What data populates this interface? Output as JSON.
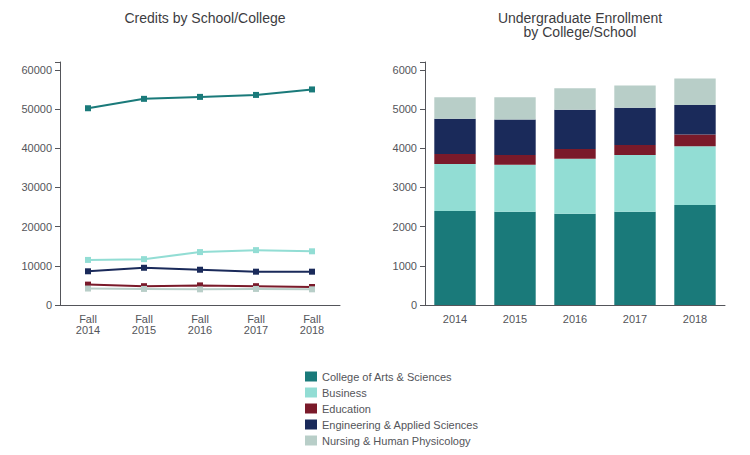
{
  "chart_data": [
    {
      "type": "line",
      "title": "Credits by School/College",
      "categories": [
        "Fall\n2014",
        "Fall\n2015",
        "Fall\n2016",
        "Fall\n2017",
        "Fall\n2018"
      ],
      "series": [
        {
          "name": "College of Arts & Sciences",
          "color": "#1a7a7a",
          "values": [
            50200,
            52600,
            53100,
            53600,
            55000
          ]
        },
        {
          "name": "Business",
          "color": "#92ddd4",
          "values": [
            11500,
            11700,
            13500,
            14000,
            13700
          ]
        },
        {
          "name": "Engineering & Applied Sciences",
          "color": "#1a2a5a",
          "values": [
            8600,
            9500,
            9000,
            8500,
            8500
          ]
        },
        {
          "name": "Education",
          "color": "#7a1a2a",
          "values": [
            5200,
            4800,
            5000,
            4800,
            4600
          ]
        },
        {
          "name": "Nursing & Human Physicology",
          "color": "#b8cec8",
          "values": [
            4200,
            4100,
            4000,
            4100,
            4000
          ]
        }
      ],
      "ylim": [
        0,
        62000
      ],
      "yticks": [
        0,
        10000,
        20000,
        30000,
        40000,
        50000,
        60000
      ],
      "marker": "square",
      "grid": false
    },
    {
      "type": "bar",
      "title": "Undergraduate Enrollment\nby College/School",
      "categories": [
        "2014",
        "2015",
        "2016",
        "2017",
        "2018"
      ],
      "series": [
        {
          "name": "College of Arts & Sciences",
          "color": "#1a7a7a",
          "values": [
            2400,
            2380,
            2330,
            2380,
            2550
          ]
        },
        {
          "name": "Business",
          "color": "#92ddd4",
          "values": [
            1200,
            1200,
            1400,
            1450,
            1500
          ]
        },
        {
          "name": "Education",
          "color": "#7a1a2a",
          "values": [
            250,
            250,
            250,
            250,
            300
          ]
        },
        {
          "name": "Engineering & Applied Sciences",
          "color": "#1a2a5a",
          "values": [
            900,
            900,
            1000,
            950,
            750
          ]
        },
        {
          "name": "Nursing & Human Physicology",
          "color": "#b8cec8",
          "values": [
            550,
            570,
            550,
            570,
            680
          ]
        }
      ],
      "stacked": true,
      "ylim": [
        0,
        6200
      ],
      "yticks": [
        0,
        1000,
        2000,
        3000,
        4000,
        5000,
        6000
      ],
      "grid": false,
      "legend": "bottom"
    }
  ]
}
